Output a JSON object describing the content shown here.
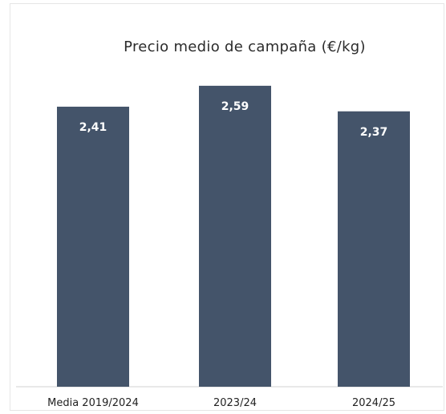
{
  "chart_data": {
    "type": "bar",
    "title": "Precio medio de campaña (€/kg)",
    "categories": [
      "Media 2019/2024",
      "2023/24",
      "2024/25"
    ],
    "values": [
      2.41,
      2.59,
      2.37
    ],
    "value_labels": [
      "2,41",
      "2,59",
      "2,37"
    ],
    "xlabel": "",
    "ylabel": "",
    "ylim": [
      0,
      2.9
    ],
    "grid": false,
    "legend": "none",
    "colors": {
      "bar": "#44546a",
      "label": "#ffffff"
    }
  }
}
